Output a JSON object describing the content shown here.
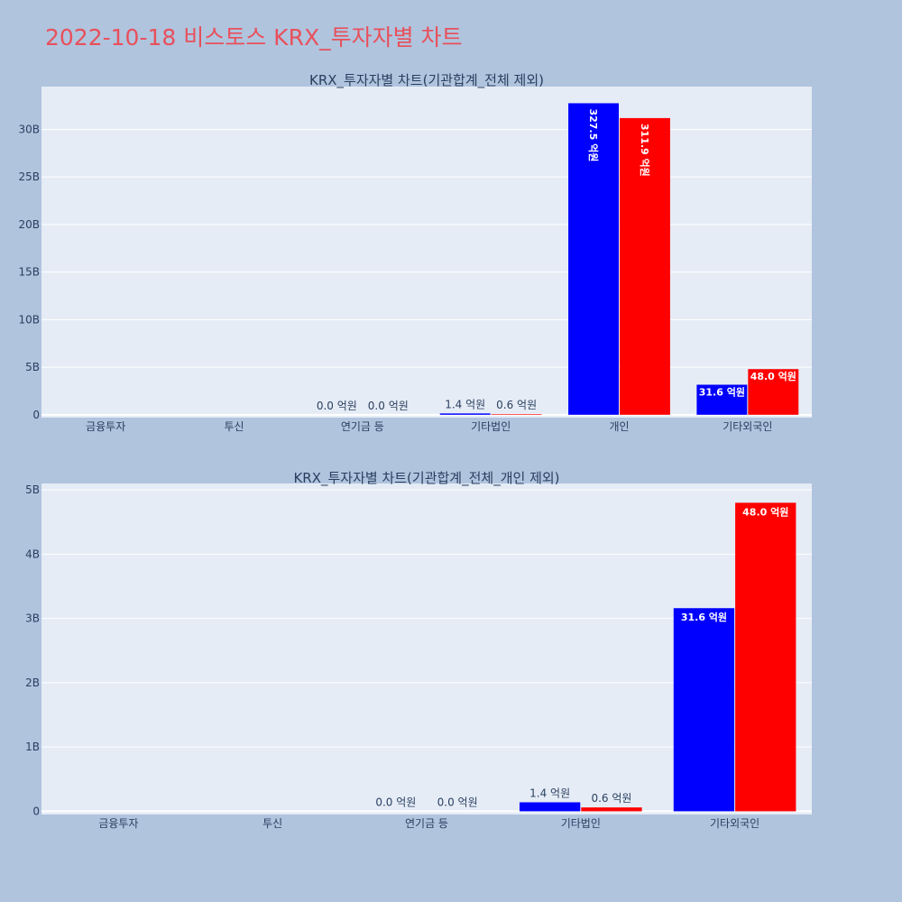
{
  "page": {
    "title": "2022-10-18 비스토스 KRX_투자자별 차트",
    "background": "#b0c4de",
    "title_color": "#e8505b"
  },
  "chart_data": [
    {
      "type": "bar",
      "title": "KRX_투자자별 차트(기관합계_전체 제외)",
      "categories": [
        "금융투자",
        "투신",
        "연기금 등",
        "기타법인",
        "개인",
        "기타외국인"
      ],
      "series": [
        {
          "color": "#0000ff",
          "values": [
            0,
            0,
            0.0,
            0.14,
            32.75,
            3.16
          ],
          "labels": [
            "",
            "",
            "0.0 억원",
            "1.4 억원",
            "327.5 억원",
            "31.6 억원"
          ]
        },
        {
          "color": "#ff0000",
          "values": [
            0,
            0,
            0.0,
            0.06,
            31.19,
            4.8
          ],
          "labels": [
            "",
            "",
            "0.0 억원",
            "0.6 억원",
            "311.9 억원",
            "48.0 억원"
          ]
        }
      ],
      "yunit": "B",
      "yticks": [
        0,
        5,
        10,
        15,
        20,
        25,
        30
      ],
      "ytick_labels": [
        "0",
        "5B",
        "10B",
        "15B",
        "20B",
        "25B",
        "30B"
      ],
      "ylim": [
        -0.3,
        34.5
      ],
      "grid": true,
      "legend": "none"
    },
    {
      "type": "bar",
      "title": "KRX_투자자별 차트(기관합계_전체_개인 제외)",
      "categories": [
        "금융투자",
        "투신",
        "연기금 등",
        "기타법인",
        "기타외국인"
      ],
      "series": [
        {
          "color": "#0000ff",
          "values": [
            0,
            0,
            0.0,
            0.14,
            3.16
          ],
          "labels": [
            "",
            "",
            "0.0 억원",
            "1.4 억원",
            "31.6 억원"
          ]
        },
        {
          "color": "#ff0000",
          "values": [
            0,
            0,
            0.0,
            0.06,
            4.8
          ],
          "labels": [
            "",
            "",
            "0.0 억원",
            "0.6 억원",
            "48.0 억원"
          ]
        }
      ],
      "yunit": "B",
      "yticks": [
        0,
        1,
        2,
        3,
        4,
        5
      ],
      "ytick_labels": [
        "0",
        "1B",
        "2B",
        "3B",
        "4B",
        "5B"
      ],
      "ylim": [
        -0.05,
        5.1
      ],
      "grid": true,
      "legend": "none"
    }
  ]
}
